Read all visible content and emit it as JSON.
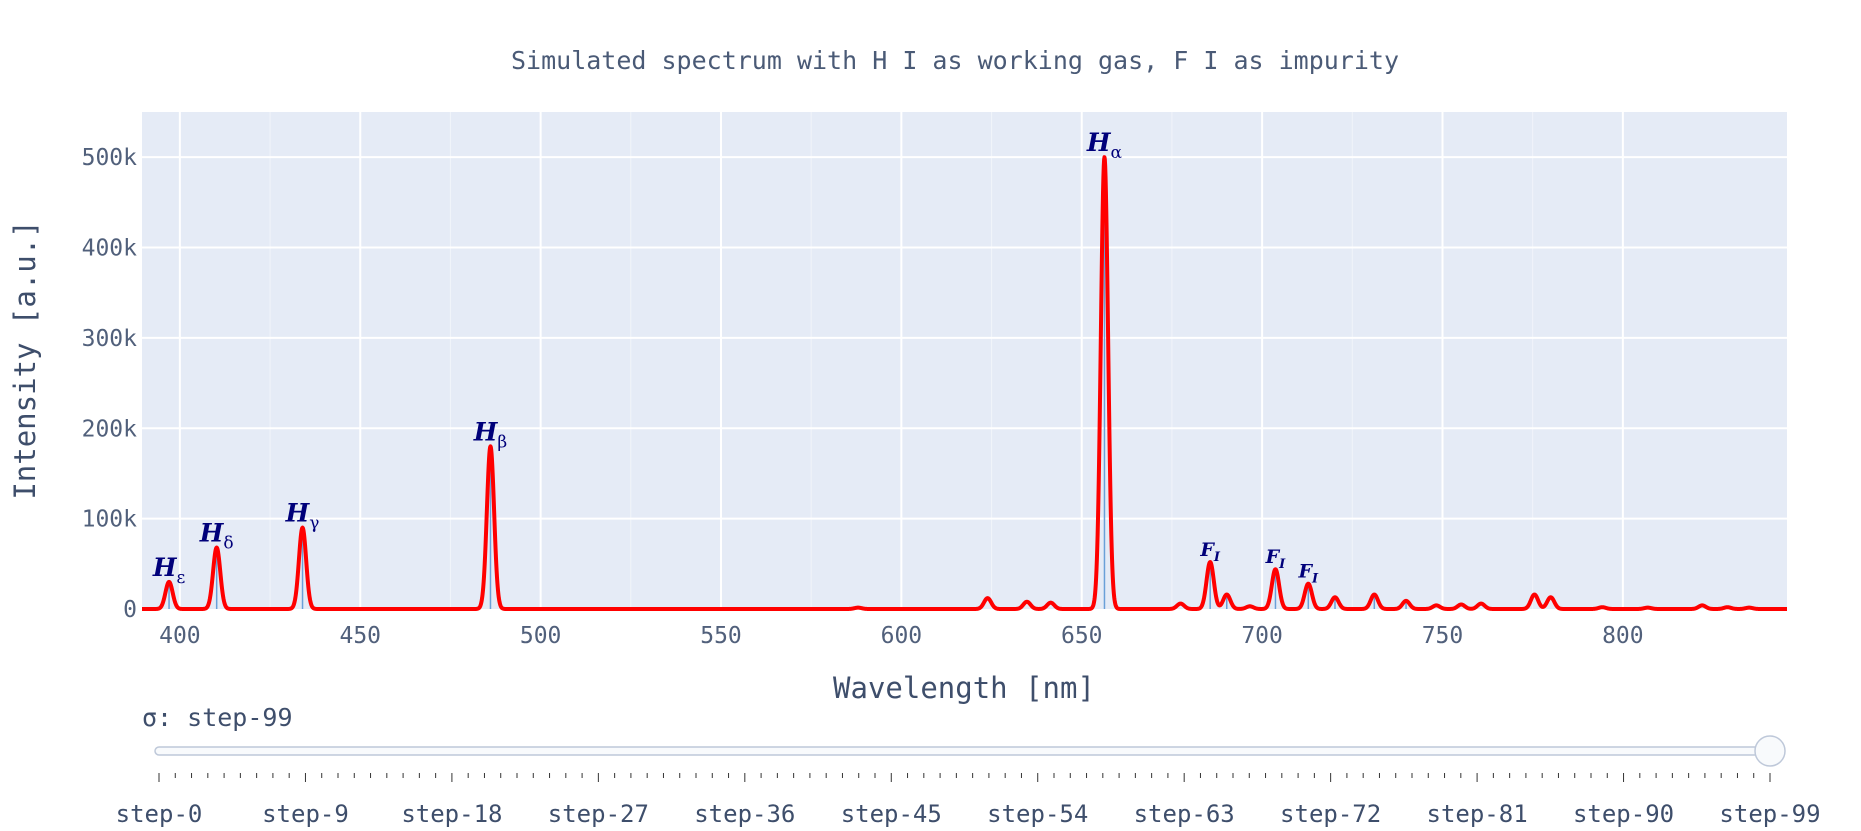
{
  "chart_data": {
    "type": "line",
    "title": "Simulated spectrum with H I as working gas, F I as impurity",
    "xlabel": "Wavelength [nm]",
    "ylabel": "Intensity [a.u.]",
    "xlim": [
      389.5,
      845.5
    ],
    "ylim": [
      0,
      550000
    ],
    "x_ticks": [
      400,
      450,
      500,
      550,
      600,
      650,
      700,
      750,
      800
    ],
    "y_ticks": [
      0,
      100000,
      200000,
      300000,
      400000,
      500000
    ],
    "y_tick_labels": [
      "0",
      "100k",
      "200k",
      "300k",
      "400k",
      "500k"
    ],
    "grid": true,
    "background_color": "#e5ebf6",
    "series": [
      {
        "color": "#ff0000",
        "peaks": [
          {
            "x": 397.0,
            "y": 30000,
            "w": 1.0
          },
          {
            "x": 410.2,
            "y": 68000,
            "w": 1.0
          },
          {
            "x": 434.0,
            "y": 90000,
            "w": 1.0
          },
          {
            "x": 486.1,
            "y": 180000,
            "w": 1.0
          },
          {
            "x": 588.0,
            "y": 1500,
            "w": 1.0
          },
          {
            "x": 623.9,
            "y": 12000,
            "w": 1.0
          },
          {
            "x": 634.8,
            "y": 8000,
            "w": 1.0
          },
          {
            "x": 641.4,
            "y": 7000,
            "w": 1.0
          },
          {
            "x": 656.3,
            "y": 500000,
            "w": 1.0
          },
          {
            "x": 677.4,
            "y": 6000,
            "w": 1.0
          },
          {
            "x": 685.6,
            "y": 52000,
            "w": 1.0
          },
          {
            "x": 690.2,
            "y": 16000,
            "w": 1.0
          },
          {
            "x": 696.6,
            "y": 3000,
            "w": 1.0
          },
          {
            "x": 703.7,
            "y": 44000,
            "w": 1.0
          },
          {
            "x": 712.8,
            "y": 28000,
            "w": 1.0
          },
          {
            "x": 720.2,
            "y": 13000,
            "w": 1.0
          },
          {
            "x": 731.1,
            "y": 16000,
            "w": 1.0
          },
          {
            "x": 739.9,
            "y": 9000,
            "w": 1.0
          },
          {
            "x": 748.3,
            "y": 4000,
            "w": 1.0
          },
          {
            "x": 755.2,
            "y": 5000,
            "w": 1.0
          },
          {
            "x": 760.7,
            "y": 6000,
            "w": 1.0
          },
          {
            "x": 775.5,
            "y": 16000,
            "w": 1.0
          },
          {
            "x": 780.0,
            "y": 13000,
            "w": 1.0
          },
          {
            "x": 794.3,
            "y": 2000,
            "w": 1.0
          },
          {
            "x": 806.9,
            "y": 1500,
            "w": 1.0
          },
          {
            "x": 822.0,
            "y": 4000,
            "w": 1.0
          },
          {
            "x": 829.0,
            "y": 2000,
            "w": 1.0
          },
          {
            "x": 835.0,
            "y": 1500,
            "w": 1.0
          }
        ]
      },
      {
        "type": "stem",
        "color": "#6aa0d8",
        "lines": [
          {
            "x": 397.0,
            "y": 30000
          },
          {
            "x": 410.2,
            "y": 68000
          },
          {
            "x": 434.0,
            "y": 90000
          },
          {
            "x": 486.1,
            "y": 180000
          },
          {
            "x": 656.3,
            "y": 500000
          },
          {
            "x": 685.6,
            "y": 52000
          },
          {
            "x": 690.2,
            "y": 16000
          },
          {
            "x": 703.7,
            "y": 44000
          },
          {
            "x": 712.8,
            "y": 28000
          },
          {
            "x": 720.2,
            "y": 13000
          },
          {
            "x": 731.1,
            "y": 16000
          },
          {
            "x": 739.9,
            "y": 9000
          }
        ]
      }
    ],
    "annotations": [
      {
        "name": "h-epsilon",
        "main": "H",
        "sub": "ε",
        "x": 397.0,
        "y": 30000,
        "size": "large"
      },
      {
        "name": "h-delta",
        "main": "H",
        "sub": "δ",
        "x": 410.2,
        "y": 68000,
        "size": "large"
      },
      {
        "name": "h-gamma",
        "main": "H",
        "sub": "γ",
        "x": 434.0,
        "y": 90000,
        "size": "large"
      },
      {
        "name": "h-beta",
        "main": "H",
        "sub": "β",
        "x": 486.1,
        "y": 180000,
        "size": "large"
      },
      {
        "name": "h-alpha",
        "main": "H",
        "sub": "α",
        "x": 656.3,
        "y": 500000,
        "size": "large"
      },
      {
        "name": "f-i-685",
        "main": "F",
        "sub": "I",
        "x": 685.6,
        "y": 52000,
        "size": "small"
      },
      {
        "name": "f-i-703",
        "main": "F",
        "sub": "I",
        "x": 703.7,
        "y": 44000,
        "size": "small"
      },
      {
        "name": "f-i-712",
        "main": "F",
        "sub": "I",
        "x": 712.8,
        "y": 28000,
        "size": "small"
      }
    ]
  },
  "slider": {
    "label_prefix": "σ: ",
    "current": "step-99",
    "value": 99,
    "min": 0,
    "max": 99,
    "step_labels": [
      "step-0",
      "step-9",
      "step-18",
      "step-27",
      "step-36",
      "step-45",
      "step-54",
      "step-63",
      "step-72",
      "step-81",
      "step-90",
      "step-99"
    ],
    "step_label_values": [
      0,
      9,
      18,
      27,
      36,
      45,
      54,
      63,
      72,
      81,
      90,
      99
    ]
  }
}
